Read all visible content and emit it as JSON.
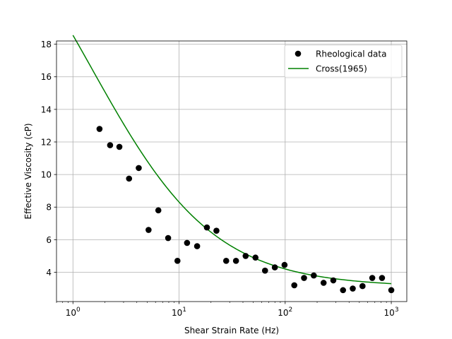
{
  "chart_data": {
    "type": "scatter",
    "title": "",
    "xlabel": "Shear Strain Rate (Hz)",
    "ylabel": "Effective Viscosity (cP)",
    "xscale": "log",
    "xlim": [
      0.7,
      1400
    ],
    "ylim": [
      2.2,
      18.2
    ],
    "x_ticks": [
      1,
      10,
      100,
      1000
    ],
    "x_tick_labels": [
      {
        "base": "10",
        "exp": "0"
      },
      {
        "base": "10",
        "exp": "1"
      },
      {
        "base": "10",
        "exp": "2"
      },
      {
        "base": "10",
        "exp": "3"
      }
    ],
    "y_ticks": [
      4,
      6,
      8,
      10,
      12,
      14,
      16,
      18
    ],
    "y_tick_labels": [
      "4",
      "6",
      "8",
      "10",
      "12",
      "14",
      "16",
      "18"
    ],
    "grid": true,
    "legend_position": "top-right",
    "series": [
      {
        "name": "Rheological data",
        "kind": "scatter",
        "color": "#000000",
        "points": [
          [
            1.78,
            12.8
          ],
          [
            2.24,
            11.8
          ],
          [
            2.74,
            11.7
          ],
          [
            3.38,
            9.75
          ],
          [
            4.17,
            10.4
          ],
          [
            5.16,
            6.6
          ],
          [
            6.38,
            7.8
          ],
          [
            7.89,
            6.1
          ],
          [
            9.66,
            4.7
          ],
          [
            11.9,
            5.8
          ],
          [
            14.8,
            5.6
          ],
          [
            18.3,
            6.75
          ],
          [
            22.5,
            6.55
          ],
          [
            27.8,
            4.7
          ],
          [
            34.4,
            4.7
          ],
          [
            42.4,
            5.0
          ],
          [
            52.5,
            4.9
          ],
          [
            64.6,
            4.1
          ],
          [
            79.9,
            4.3
          ],
          [
            98.6,
            4.45
          ],
          [
            121.9,
            3.2
          ],
          [
            150.6,
            3.65
          ],
          [
            186.0,
            3.8
          ],
          [
            230.2,
            3.35
          ],
          [
            284.2,
            3.5
          ],
          [
            350.9,
            2.9
          ],
          [
            433.5,
            3.0
          ],
          [
            535.6,
            3.15
          ],
          [
            661.9,
            3.65
          ],
          [
            817.8,
            3.65
          ],
          [
            1000,
            2.9
          ]
        ]
      },
      {
        "name": "Cross(1965)",
        "kind": "line",
        "color": "#008000",
        "model": {
          "eta_inf": 3.1,
          "eta_0": 30,
          "lambda": 0.67,
          "n": 0.75,
          "x_min": 1,
          "x_max": 1000
        }
      }
    ]
  }
}
